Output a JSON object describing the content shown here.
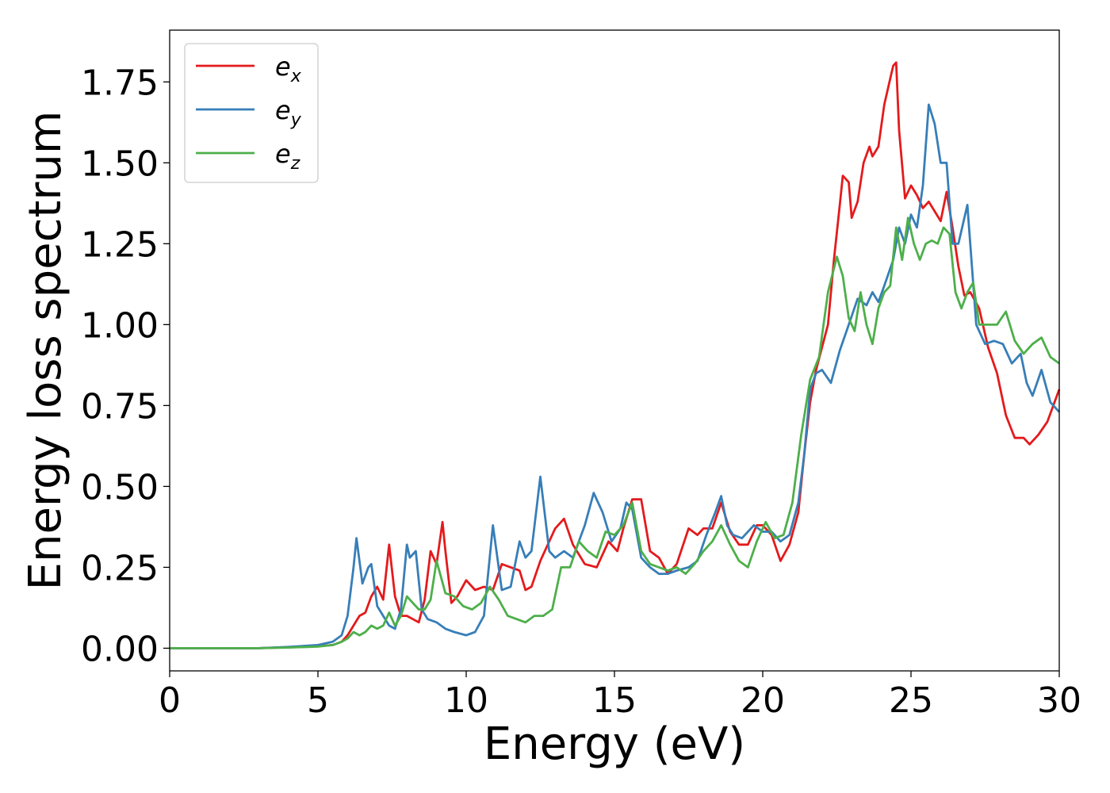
{
  "chart_data": {
    "type": "line",
    "title": "",
    "xlabel": "Energy (eV)",
    "ylabel": "Energy loss spectrum",
    "xlim": [
      0,
      30
    ],
    "ylim": [
      -0.07,
      1.91
    ],
    "xticks": [
      0,
      5,
      10,
      15,
      20,
      25,
      30
    ],
    "xtick_labels": [
      "0",
      "5",
      "10",
      "15",
      "20",
      "25",
      "30"
    ],
    "yticks": [
      0.0,
      0.25,
      0.5,
      0.75,
      1.0,
      1.25,
      1.5,
      1.75
    ],
    "ytick_labels": [
      "0.00",
      "0.25",
      "0.50",
      "0.75",
      "1.00",
      "1.25",
      "1.50",
      "1.75"
    ],
    "grid": false,
    "legend": {
      "position": "top-left"
    },
    "series": [
      {
        "name": "e_x",
        "legend_base": "e",
        "legend_sub": "x",
        "color": "#e41a1c",
        "x": [
          0,
          1,
          2,
          3,
          4,
          5,
          5.5,
          5.8,
          6.0,
          6.2,
          6.4,
          6.6,
          6.8,
          7.0,
          7.2,
          7.4,
          7.6,
          7.8,
          8.0,
          8.2,
          8.4,
          8.6,
          8.8,
          9.0,
          9.2,
          9.3,
          9.5,
          9.7,
          10.0,
          10.3,
          10.6,
          10.9,
          11.2,
          11.5,
          11.8,
          12.0,
          12.2,
          12.5,
          12.8,
          13.0,
          13.3,
          13.6,
          14.0,
          14.4,
          14.8,
          15.1,
          15.3,
          15.6,
          15.9,
          16.2,
          16.5,
          16.8,
          17.1,
          17.5,
          17.8,
          18.0,
          18.3,
          18.6,
          18.9,
          19.2,
          19.5,
          19.8,
          20.0,
          20.3,
          20.6,
          20.9,
          21.2,
          21.4,
          21.6,
          21.8,
          22.0,
          22.2,
          22.4,
          22.6,
          22.7,
          22.9,
          23.0,
          23.2,
          23.4,
          23.6,
          23.7,
          23.9,
          24.1,
          24.3,
          24.4,
          24.5,
          24.6,
          24.8,
          25.0,
          25.2,
          25.4,
          25.6,
          25.8,
          26.0,
          26.2,
          26.4,
          26.6,
          26.8,
          27.0,
          27.3,
          27.6,
          27.9,
          28.2,
          28.5,
          28.8,
          29.0,
          29.3,
          29.6,
          30.0
        ],
        "y": [
          0.0,
          0.0,
          0.0,
          0.0,
          0.003,
          0.006,
          0.01,
          0.02,
          0.04,
          0.07,
          0.1,
          0.11,
          0.16,
          0.19,
          0.15,
          0.32,
          0.16,
          0.1,
          0.1,
          0.09,
          0.08,
          0.15,
          0.3,
          0.26,
          0.39,
          0.3,
          0.14,
          0.16,
          0.21,
          0.18,
          0.19,
          0.18,
          0.26,
          0.25,
          0.24,
          0.18,
          0.19,
          0.27,
          0.33,
          0.37,
          0.4,
          0.32,
          0.26,
          0.25,
          0.33,
          0.3,
          0.37,
          0.46,
          0.46,
          0.3,
          0.28,
          0.23,
          0.26,
          0.37,
          0.35,
          0.37,
          0.37,
          0.45,
          0.36,
          0.32,
          0.32,
          0.38,
          0.38,
          0.35,
          0.27,
          0.32,
          0.42,
          0.6,
          0.76,
          0.86,
          0.93,
          1.0,
          1.2,
          1.37,
          1.46,
          1.44,
          1.33,
          1.38,
          1.5,
          1.55,
          1.52,
          1.55,
          1.68,
          1.76,
          1.8,
          1.81,
          1.6,
          1.39,
          1.43,
          1.4,
          1.36,
          1.38,
          1.35,
          1.32,
          1.41,
          1.3,
          1.18,
          1.09,
          1.1,
          1.05,
          0.93,
          0.85,
          0.72,
          0.65,
          0.65,
          0.63,
          0.66,
          0.7,
          0.8
        ]
      },
      {
        "name": "e_y",
        "legend_base": "e",
        "legend_sub": "y",
        "color": "#377eb8",
        "x": [
          0,
          1,
          2,
          3,
          4,
          5,
          5.5,
          5.8,
          6.0,
          6.2,
          6.3,
          6.5,
          6.7,
          6.8,
          7.0,
          7.2,
          7.4,
          7.6,
          7.8,
          8.0,
          8.1,
          8.3,
          8.5,
          8.7,
          9.0,
          9.3,
          9.6,
          10.0,
          10.3,
          10.6,
          10.9,
          11.2,
          11.5,
          11.8,
          12.0,
          12.2,
          12.5,
          12.8,
          13.0,
          13.3,
          13.6,
          14.0,
          14.3,
          14.6,
          14.9,
          15.2,
          15.4,
          15.6,
          15.9,
          16.2,
          16.5,
          16.8,
          17.1,
          17.5,
          17.8,
          18.1,
          18.4,
          18.6,
          18.8,
          19.0,
          19.3,
          19.7,
          20.0,
          20.3,
          20.6,
          20.9,
          21.2,
          21.4,
          21.6,
          21.8,
          22.0,
          22.3,
          22.6,
          22.9,
          23.2,
          23.5,
          23.7,
          23.9,
          24.1,
          24.4,
          24.6,
          24.8,
          25.0,
          25.2,
          25.4,
          25.6,
          25.8,
          26.0,
          26.2,
          26.4,
          26.6,
          26.9,
          27.2,
          27.5,
          27.8,
          28.1,
          28.4,
          28.7,
          28.9,
          29.1,
          29.4,
          29.7,
          30.0
        ],
        "y": [
          0.0,
          0.0,
          0.0,
          0.0,
          0.004,
          0.01,
          0.02,
          0.04,
          0.1,
          0.25,
          0.34,
          0.2,
          0.25,
          0.26,
          0.13,
          0.1,
          0.07,
          0.06,
          0.12,
          0.32,
          0.28,
          0.3,
          0.12,
          0.09,
          0.08,
          0.06,
          0.05,
          0.04,
          0.05,
          0.1,
          0.38,
          0.18,
          0.19,
          0.33,
          0.28,
          0.3,
          0.53,
          0.3,
          0.28,
          0.3,
          0.28,
          0.38,
          0.48,
          0.42,
          0.33,
          0.37,
          0.45,
          0.43,
          0.28,
          0.25,
          0.23,
          0.23,
          0.24,
          0.25,
          0.27,
          0.35,
          0.42,
          0.47,
          0.38,
          0.35,
          0.34,
          0.38,
          0.36,
          0.36,
          0.33,
          0.35,
          0.45,
          0.6,
          0.8,
          0.85,
          0.86,
          0.82,
          0.92,
          1.0,
          1.08,
          1.06,
          1.1,
          1.07,
          1.12,
          1.2,
          1.3,
          1.25,
          1.34,
          1.3,
          1.43,
          1.68,
          1.62,
          1.5,
          1.5,
          1.25,
          1.25,
          1.37,
          1.0,
          0.94,
          0.95,
          0.94,
          0.88,
          0.91,
          0.82,
          0.78,
          0.86,
          0.76,
          0.73
        ]
      },
      {
        "name": "e_z",
        "legend_base": "e",
        "legend_sub": "z",
        "color": "#4daf4a",
        "x": [
          0,
          1,
          2,
          3,
          4,
          5,
          5.5,
          5.8,
          6.0,
          6.2,
          6.4,
          6.6,
          6.8,
          7.0,
          7.2,
          7.4,
          7.6,
          7.8,
          8.0,
          8.2,
          8.4,
          8.6,
          8.8,
          9.0,
          9.3,
          9.6,
          9.9,
          10.2,
          10.5,
          10.8,
          11.1,
          11.4,
          11.7,
          12.0,
          12.3,
          12.6,
          12.9,
          13.2,
          13.5,
          13.8,
          14.1,
          14.4,
          14.7,
          15.0,
          15.3,
          15.6,
          15.9,
          16.2,
          16.5,
          16.8,
          17.1,
          17.4,
          17.7,
          18.0,
          18.3,
          18.6,
          18.9,
          19.2,
          19.5,
          19.8,
          20.1,
          20.4,
          20.7,
          21.0,
          21.3,
          21.6,
          21.9,
          22.2,
          22.5,
          22.7,
          22.9,
          23.1,
          23.3,
          23.5,
          23.7,
          23.9,
          24.1,
          24.3,
          24.5,
          24.7,
          24.9,
          25.1,
          25.3,
          25.5,
          25.7,
          25.9,
          26.1,
          26.3,
          26.5,
          26.7,
          26.9,
          27.1,
          27.3,
          27.6,
          27.9,
          28.2,
          28.5,
          28.8,
          29.1,
          29.4,
          29.7,
          30.0
        ],
        "y": [
          0.0,
          0.0,
          0.0,
          0.0,
          0.002,
          0.005,
          0.01,
          0.02,
          0.03,
          0.05,
          0.04,
          0.05,
          0.07,
          0.06,
          0.07,
          0.11,
          0.07,
          0.1,
          0.16,
          0.14,
          0.12,
          0.12,
          0.15,
          0.27,
          0.17,
          0.16,
          0.13,
          0.12,
          0.14,
          0.19,
          0.15,
          0.1,
          0.09,
          0.08,
          0.1,
          0.1,
          0.12,
          0.25,
          0.25,
          0.33,
          0.3,
          0.28,
          0.36,
          0.35,
          0.38,
          0.45,
          0.3,
          0.26,
          0.25,
          0.24,
          0.25,
          0.23,
          0.26,
          0.3,
          0.33,
          0.38,
          0.32,
          0.27,
          0.25,
          0.33,
          0.39,
          0.34,
          0.35,
          0.45,
          0.66,
          0.83,
          0.9,
          1.1,
          1.21,
          1.15,
          1.02,
          0.98,
          1.1,
          1.0,
          0.94,
          1.05,
          1.1,
          1.12,
          1.3,
          1.2,
          1.33,
          1.25,
          1.2,
          1.25,
          1.26,
          1.25,
          1.3,
          1.28,
          1.1,
          1.05,
          1.1,
          1.13,
          1.0,
          1.0,
          1.0,
          1.04,
          0.95,
          0.91,
          0.94,
          0.96,
          0.9,
          0.88
        ]
      }
    ]
  }
}
